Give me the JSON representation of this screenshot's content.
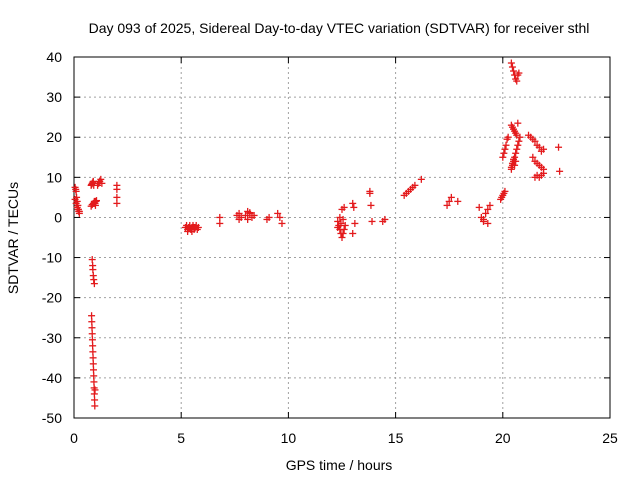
{
  "chart_data": {
    "type": "scatter",
    "title": "Day 093 of 2025, Sidereal Day-to-day VTEC variation (SDTVAR) for receiver sthl",
    "xlabel": "GPS time / hours",
    "ylabel": "SDTVAR / TECUs",
    "xlim": [
      0,
      25
    ],
    "ylim": [
      -50,
      40
    ],
    "xticks": [
      "0",
      "5",
      "10",
      "15",
      "20",
      "25"
    ],
    "yticks": [
      "40",
      "30",
      "20",
      "10",
      "0",
      "-10",
      "-20",
      "-30",
      "-40",
      "-50"
    ],
    "grid": true,
    "marker": "plus",
    "series": [
      {
        "name": "SDTVAR",
        "color": "#e31a1c",
        "x": [
          0.05,
          0.08,
          0.1,
          0.12,
          0.15,
          0.18,
          0.2,
          0.22,
          0.25,
          0.05,
          0.1,
          0.15,
          0.2,
          0.25,
          0.8,
          0.82,
          0.85,
          0.88,
          0.9,
          0.92,
          0.95,
          0.98,
          1.0,
          1.02,
          1.05,
          0.8,
          0.85,
          0.9,
          0.95,
          1.0,
          1.1,
          1.15,
          1.2,
          1.25,
          1.3,
          0.85,
          0.87,
          0.88,
          0.9,
          0.92,
          0.95,
          0.82,
          0.83,
          0.84,
          0.85,
          0.86,
          0.87,
          0.88,
          0.89,
          0.9,
          0.91,
          0.92,
          0.93,
          0.94,
          0.95,
          0.96,
          0.97,
          0.98,
          2.0,
          2.0,
          2.0,
          2.0,
          5.2,
          5.25,
          5.3,
          5.35,
          5.4,
          5.45,
          5.5,
          5.55,
          5.6,
          5.65,
          5.7,
          5.75,
          5.8,
          5.3,
          5.4,
          5.5,
          5.6,
          6.8,
          6.8,
          7.6,
          7.7,
          7.8,
          8.0,
          8.1,
          8.2,
          8.3,
          8.4,
          7.7,
          8.1,
          8.2,
          9.0,
          9.1,
          9.5,
          9.6,
          9.7,
          12.3,
          12.35,
          12.4,
          12.45,
          12.5,
          12.55,
          12.6,
          12.65,
          12.4,
          12.5,
          12.6,
          12.3,
          12.45,
          12.55,
          13.0,
          13.05,
          13.1,
          13.0,
          13.8,
          13.85,
          13.9,
          13.8,
          14.4,
          14.5,
          15.4,
          15.5,
          15.6,
          15.7,
          15.8,
          15.9,
          16.2,
          17.4,
          17.5,
          17.6,
          17.9,
          18.9,
          19.0,
          19.1,
          19.2,
          19.3,
          19.4,
          19.1,
          19.3,
          19.9,
          19.95,
          20.0,
          20.05,
          20.1,
          20.0,
          20.05,
          20.1,
          20.15,
          20.2,
          20.25,
          20.4,
          20.45,
          20.5,
          20.55,
          20.6,
          20.65,
          20.7,
          20.75,
          20.4,
          20.45,
          20.5,
          20.55,
          20.6,
          20.65,
          20.7,
          20.4,
          20.45,
          20.5,
          20.55,
          20.6,
          20.65,
          20.7,
          20.75,
          20.8,
          20.4,
          20.45,
          20.5,
          20.55,
          20.6,
          21.2,
          21.3,
          21.4,
          21.5,
          21.6,
          21.7,
          21.8,
          21.9,
          21.4,
          21.5,
          21.6,
          21.7,
          21.8,
          21.9,
          21.5,
          21.6,
          21.7,
          21.8,
          21.9,
          22.6,
          22.65
        ],
        "y": [
          7.5,
          7,
          6.5,
          5,
          4,
          3,
          2,
          1.5,
          1,
          4.5,
          3.5,
          2.5,
          2,
          1.5,
          8,
          8.2,
          8.5,
          8.8,
          9,
          8,
          4,
          3.5,
          3,
          4,
          4.2,
          2.8,
          3.2,
          3.5,
          3.8,
          4,
          8,
          8.5,
          9,
          9.5,
          8.5,
          -10.5,
          -12,
          -13,
          -14.5,
          -15.5,
          -16.5,
          -24.5,
          -26,
          -27.5,
          -29,
          -30.5,
          -32,
          -33.5,
          -35,
          -36.5,
          -38,
          -39.5,
          -41,
          -42.5,
          -44,
          -45.5,
          -47,
          -43,
          8,
          7,
          5,
          3.5,
          -2.5,
          -2,
          -3,
          -2.5,
          -2,
          -3,
          -2.5,
          -2,
          -3,
          -2.5,
          -2,
          -3,
          -2.5,
          -3.5,
          -2.5,
          -3.5,
          -2.5,
          0,
          -1.5,
          0.5,
          1,
          0,
          0.5,
          1.5,
          1,
          0,
          0.5,
          -0.5,
          -0.5,
          1.2,
          -0.5,
          0,
          1,
          0,
          -1.5,
          -1,
          -2,
          -3,
          -4,
          -5,
          -4,
          -3,
          -2,
          0,
          2,
          2.5,
          -2.5,
          -1.5,
          -0.5,
          3.5,
          2.5,
          -1.5,
          -4,
          6.5,
          3,
          -1,
          6,
          -1,
          -0.5,
          5.5,
          6,
          6.5,
          7,
          7.5,
          8,
          9.5,
          3,
          4,
          5,
          4,
          2.5,
          0,
          -0.5,
          1,
          2,
          3,
          -1,
          -1.5,
          4.5,
          5,
          5.5,
          6,
          6.5,
          15,
          16,
          17,
          18,
          19.5,
          20,
          38.5,
          37.5,
          36.5,
          35.5,
          34.5,
          34,
          35.5,
          36,
          23,
          22.5,
          22,
          21.5,
          21,
          20.5,
          23.5,
          12,
          13,
          14,
          15,
          16,
          17,
          18,
          19,
          20,
          12.5,
          13.5,
          14.5,
          13,
          14,
          20.5,
          20,
          19.5,
          19,
          18,
          17.5,
          16.5,
          17,
          15,
          14,
          13.5,
          13,
          12.5,
          12,
          10,
          10.5,
          10,
          10.5,
          11,
          17.5,
          11.5
        ]
      }
    ]
  }
}
